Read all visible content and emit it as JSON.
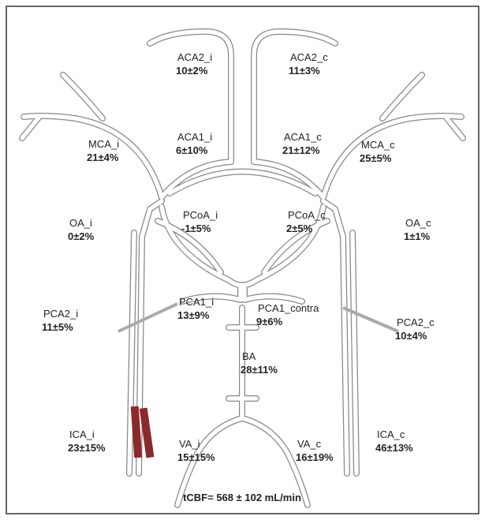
{
  "title": "tCBF= 568 ± 102 mL/min",
  "nodes": [
    {
      "label": "ACA2_i",
      "value": "10±2%"
    },
    {
      "label": "ACA2_c",
      "value": "11±3%"
    },
    {
      "label": "MCA_i",
      "value": "21±4%"
    },
    {
      "label": "ACA1_i",
      "value": "6±10%"
    },
    {
      "label": "ACA1_c",
      "value": "21±12%"
    },
    {
      "label": "MCA_c",
      "value": "25±5%"
    },
    {
      "label": "OA_i",
      "value": "0±2%"
    },
    {
      "label": "PCoA_i",
      "value": "-1±5%"
    },
    {
      "label": "PCoA_c",
      "value": "2±5%"
    },
    {
      "label": "OA_c",
      "value": "1±1%"
    },
    {
      "label": "PCA2_i",
      "value": "11±5%"
    },
    {
      "label": "PCA1_i",
      "value": "13±9%"
    },
    {
      "label": "PCA1_contra",
      "value": "9±6%"
    },
    {
      "label": "PCA2_c",
      "value": "10±4%"
    },
    {
      "label": "BA",
      "value": "28±11%"
    },
    {
      "label": "ICA_i",
      "value": "23±15%"
    },
    {
      "label": "VA_i",
      "value": "15±15%"
    },
    {
      "label": "VA_c",
      "value": "16±19%"
    },
    {
      "label": "ICA_c",
      "value": "46±13%"
    }
  ]
}
